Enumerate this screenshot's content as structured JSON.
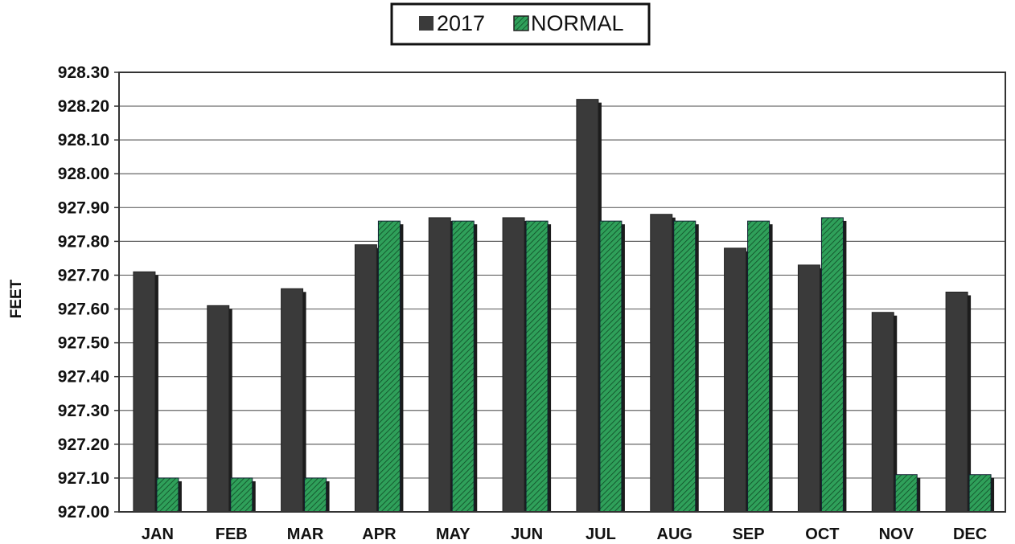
{
  "chart_data": {
    "type": "bar",
    "categories": [
      "JAN",
      "FEB",
      "MAR",
      "APR",
      "MAY",
      "JUN",
      "JUL",
      "AUG",
      "SEP",
      "OCT",
      "NOV",
      "DEC"
    ],
    "series": [
      {
        "name": "2017",
        "color": "#3a3a3a",
        "values": [
          927.71,
          927.61,
          927.66,
          927.79,
          927.87,
          927.87,
          928.22,
          927.88,
          927.78,
          927.73,
          927.59,
          927.65
        ]
      },
      {
        "name": "NORMAL",
        "color": "#2fa05a",
        "pattern": "diagonal-hatch",
        "values": [
          927.1,
          927.1,
          927.1,
          927.86,
          927.86,
          927.86,
          927.86,
          927.86,
          927.86,
          927.87,
          927.11,
          927.11
        ]
      }
    ],
    "title": "",
    "xlabel": "",
    "ylabel": "FEET",
    "ylim": [
      927.0,
      928.3
    ],
    "yticks": [
      "927.00",
      "927.10",
      "927.20",
      "927.30",
      "927.40",
      "927.50",
      "927.60",
      "927.70",
      "927.80",
      "927.90",
      "928.00",
      "928.10",
      "928.20",
      "928.30"
    ],
    "grid": true,
    "legend_position": "top-center"
  }
}
